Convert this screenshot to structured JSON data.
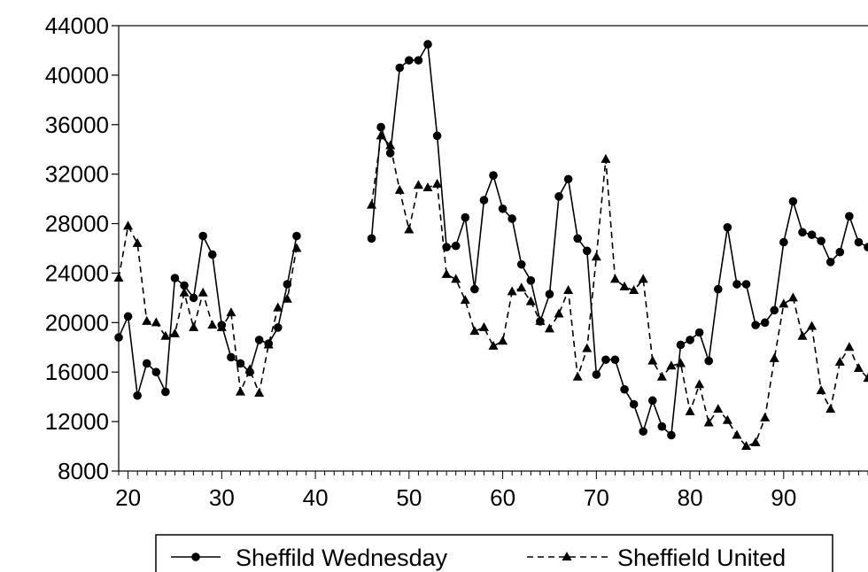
{
  "chart_data": {
    "type": "line",
    "title": "",
    "xlabel": "",
    "ylabel": "",
    "xlim": [
      19,
      99
    ],
    "ylim": [
      8000,
      44000
    ],
    "x_ticks": [
      20,
      30,
      40,
      50,
      60,
      70,
      80,
      90
    ],
    "y_ticks": [
      8000,
      12000,
      16000,
      20000,
      24000,
      28000,
      32000,
      36000,
      40000,
      44000
    ],
    "x_tick_labels": [
      "20",
      "30",
      "40",
      "50",
      "60",
      "70",
      "80",
      "90"
    ],
    "y_tick_labels": [
      "8000",
      "12000",
      "16000",
      "20000",
      "24000",
      "28000",
      "32000",
      "36000",
      "40000",
      "44000"
    ],
    "grid": false,
    "legend_position": "bottom",
    "series": [
      {
        "name": "Sheffild Wednesday",
        "style": "solid",
        "marker": "circle",
        "color": "#000000",
        "segments": [
          {
            "x": [
              19,
              20,
              21,
              22,
              23,
              24,
              25,
              26,
              27,
              28,
              29,
              30,
              31,
              32,
              33,
              34,
              35,
              36,
              37,
              38
            ],
            "y": [
              18800,
              20500,
              14100,
              16700,
              16000,
              14400,
              23600,
              23000,
              22000,
              27000,
              25500,
              19800,
              17200,
              16700,
              16000,
              18600,
              18300,
              19600,
              23100,
              27000
            ]
          },
          {
            "x": [
              46,
              47,
              48,
              49,
              50,
              51,
              52,
              53,
              54,
              55,
              56,
              57,
              58,
              59,
              60,
              61,
              62,
              63,
              64,
              65,
              66,
              67,
              68,
              69,
              70,
              71,
              72,
              73,
              74,
              75,
              76,
              77,
              78,
              79,
              80,
              81,
              82,
              83,
              84,
              85,
              86,
              87,
              88,
              89,
              90,
              91,
              92,
              93,
              94,
              95,
              96,
              97,
              98,
              99
            ],
            "y": [
              26800,
              35800,
              33700,
              40600,
              41200,
              41200,
              42500,
              35100,
              26100,
              26200,
              28500,
              22700,
              29900,
              31900,
              29200,
              28400,
              24700,
              23400,
              20100,
              22300,
              30200,
              31600,
              26800,
              25800,
              15800,
              17000,
              17000,
              14600,
              13400,
              11200,
              13700,
              11600,
              10900,
              18200,
              18600,
              19200,
              16900,
              22700,
              27700,
              23100,
              23100,
              19800,
              20000,
              21000,
              26500,
              29800,
              27300,
              27100,
              26600,
              24900,
              25700,
              28600,
              26500,
              26100
            ]
          }
        ]
      },
      {
        "name": "Sheffield United",
        "style": "dashed",
        "marker": "triangle",
        "color": "#000000",
        "segments": [
          {
            "x": [
              19,
              20,
              21,
              22,
              23,
              24,
              25,
              26,
              27,
              28,
              29,
              30,
              31,
              32,
              33,
              34,
              35,
              36,
              37,
              38
            ],
            "y": [
              23600,
              27800,
              26400,
              20100,
              20000,
              18900,
              19100,
              22400,
              19600,
              22400,
              19800,
              19600,
              20800,
              14400,
              16200,
              14300,
              18200,
              21200,
              21900,
              26000
            ]
          },
          {
            "x": [
              46,
              47,
              48,
              49,
              50,
              51,
              52,
              53,
              54,
              55,
              56,
              57,
              58,
              59,
              60,
              61,
              62,
              63,
              64,
              65,
              66,
              67,
              68,
              69,
              70,
              71,
              72,
              73,
              74,
              75,
              76,
              77,
              78,
              79,
              80,
              81,
              82,
              83,
              84,
              85,
              86,
              87,
              88,
              89,
              90,
              91,
              92,
              93,
              94,
              95,
              96,
              97,
              98,
              99
            ],
            "y": [
              29500,
              35100,
              34300,
              30700,
              27500,
              31100,
              30900,
              31200,
              23900,
              23500,
              21800,
              19300,
              19600,
              18100,
              18500,
              22500,
              22800,
              21700,
              20100,
              19500,
              20700,
              22600,
              15600,
              17900,
              25300,
              33200,
              23500,
              22900,
              22600,
              23500,
              16900,
              15600,
              16500,
              16700,
              12800,
              15000,
              11900,
              13000,
              12100,
              10900,
              10000,
              10300,
              12300,
              17100,
              21500,
              22000,
              18900,
              19700,
              14500,
              13000,
              16800,
              18000,
              16300,
              15500
            ]
          }
        ]
      }
    ]
  }
}
